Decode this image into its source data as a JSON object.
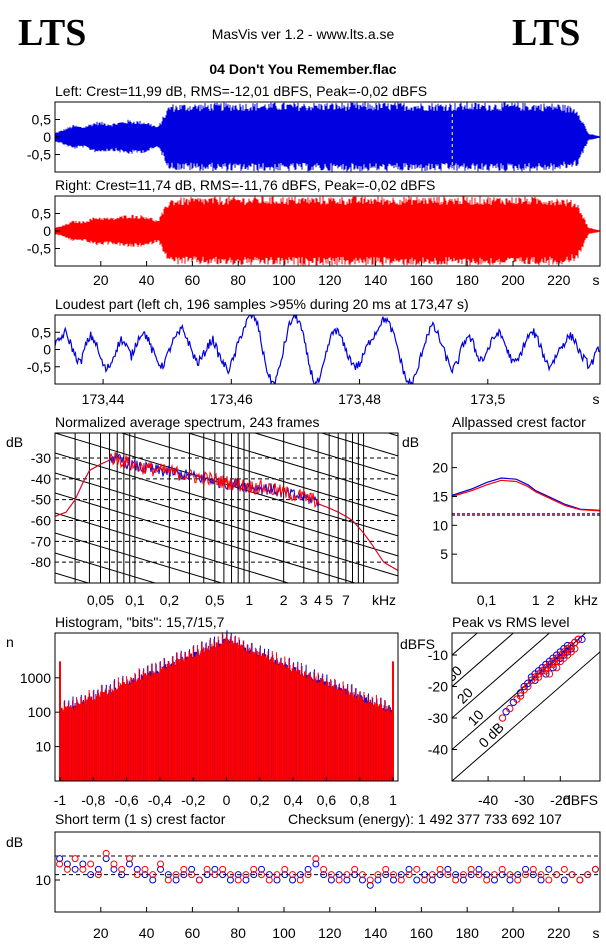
{
  "header": {
    "logo_left": "LTS",
    "logo_right": "LTS",
    "app_title": "MasVis ver 1.2 - www.lts.a.se",
    "file_title": "04 Don't You Remember.flac"
  },
  "colors": {
    "left": "#0000e0",
    "right": "#ff0000"
  },
  "chart_data": [
    {
      "id": "left-waveform",
      "type": "area",
      "title": "Left: Crest=11,99 dB, RMS=-12,01 dBFS, Peak=-0,02 dBFS",
      "yticks": [
        "0,5",
        "0",
        "-0,5"
      ],
      "ytick_values": [
        0.5,
        0,
        -0.5
      ],
      "ylim": [
        -1,
        1
      ],
      "xlim": [
        0,
        238
      ],
      "marker_x": 173.47,
      "envelope": [
        [
          0,
          0.12
        ],
        [
          3,
          0.2
        ],
        [
          8,
          0.35
        ],
        [
          12,
          0.3
        ],
        [
          18,
          0.45
        ],
        [
          25,
          0.4
        ],
        [
          32,
          0.5
        ],
        [
          40,
          0.45
        ],
        [
          45,
          0.3
        ],
        [
          50,
          0.95
        ],
        [
          60,
          0.97
        ],
        [
          80,
          0.99
        ],
        [
          120,
          0.99
        ],
        [
          160,
          0.99
        ],
        [
          200,
          0.99
        ],
        [
          220,
          0.97
        ],
        [
          228,
          0.85
        ],
        [
          231,
          0.4
        ],
        [
          233,
          0.1
        ],
        [
          238,
          0.02
        ]
      ]
    },
    {
      "id": "right-waveform",
      "type": "area",
      "title": "Right: Crest=11,74 dB, RMS=-11,76 dBFS, Peak=-0,02 dBFS",
      "yticks": [
        "0,5",
        "0",
        "-0,5"
      ],
      "ytick_values": [
        0.5,
        0,
        -0.5
      ],
      "ylim": [
        -1,
        1
      ],
      "xlim": [
        0,
        238
      ],
      "xticks": [
        20,
        40,
        60,
        80,
        100,
        120,
        140,
        160,
        180,
        200,
        220
      ],
      "xunit": "s",
      "envelope": [
        [
          0,
          0.1
        ],
        [
          3,
          0.15
        ],
        [
          8,
          0.3
        ],
        [
          12,
          0.28
        ],
        [
          18,
          0.42
        ],
        [
          25,
          0.38
        ],
        [
          32,
          0.48
        ],
        [
          40,
          0.45
        ],
        [
          45,
          0.3
        ],
        [
          50,
          0.95
        ],
        [
          60,
          0.97
        ],
        [
          80,
          0.99
        ],
        [
          120,
          0.99
        ],
        [
          160,
          0.99
        ],
        [
          200,
          0.99
        ],
        [
          220,
          0.97
        ],
        [
          228,
          0.85
        ],
        [
          231,
          0.4
        ],
        [
          233,
          0.1
        ],
        [
          238,
          0.02
        ]
      ]
    },
    {
      "id": "loudest-part",
      "type": "line",
      "title": "Loudest part (left  ch, 196 samples >95% during 20 ms at 173,47 s)",
      "yticks": [
        "0,5",
        "0",
        "-0,5"
      ],
      "ytick_values": [
        0.5,
        0,
        -0.5
      ],
      "ylim": [
        -1,
        1
      ],
      "xlim": [
        173.4325,
        173.5175
      ],
      "xticks": [
        173.44,
        173.46,
        173.48,
        173.5
      ],
      "xticklabels": [
        "173,44",
        "173,46",
        "173,48",
        "173,5"
      ],
      "xunit": "s",
      "values": [
        0.1,
        0.3,
        0.5,
        0.2,
        -0.2,
        -0.4,
        0.1,
        0.4,
        0.2,
        -0.3,
        -0.6,
        -0.4,
        0.0,
        0.3,
        0.1,
        -0.2,
        0.2,
        0.5,
        0.4,
        0.0,
        -0.3,
        -0.5,
        -0.2,
        0.2,
        0.4,
        0.6,
        0.3,
        -0.1,
        -0.4,
        -0.2,
        0.1,
        0.3,
        -0.1,
        -0.4,
        -0.6,
        -0.3,
        0.2,
        0.6,
        0.9,
        1.0,
        0.6,
        -0.2,
        -0.8,
        -1.0,
        -0.6,
        0.1,
        0.7,
        1.0,
        0.8,
        0.2,
        -0.5,
        -1.0,
        -0.9,
        -0.3,
        0.3,
        0.6,
        0.4,
        0.0,
        -0.3,
        -0.5,
        -0.4,
        0.0,
        0.3,
        0.5,
        0.8,
        0.9,
        0.6,
        0.2,
        -0.4,
        -0.9,
        -1.0,
        -0.7,
        -0.1,
        0.4,
        0.7,
        0.5,
        0.1,
        -0.3,
        -0.6,
        -0.4,
        0.1,
        0.4,
        0.2,
        -0.2,
        -0.3,
        0.0,
        0.3,
        0.5,
        0.3,
        -0.1,
        -0.4,
        -0.3,
        0.1,
        0.4,
        0.5,
        0.2,
        -0.2,
        -0.5,
        -0.3,
        0.0,
        0.2,
        0.4,
        0.3,
        -0.1,
        -0.3,
        -0.5,
        -0.2,
        0.1
      ]
    },
    {
      "id": "average-spectrum",
      "type": "line",
      "title": "Normalized average spectrum, 243 frames",
      "ylabel": "dB",
      "yticks": [
        -30,
        -40,
        -50,
        -60,
        -70,
        -80
      ],
      "ylim": [
        -90,
        -18
      ],
      "xlim": [
        0.02,
        20
      ],
      "xscale": "log",
      "xticks": [
        0.05,
        0.1,
        0.2,
        0.5,
        1,
        2,
        3,
        4,
        5,
        7
      ],
      "xticklabels": [
        "0,05",
        "0,1",
        "0,2",
        "0,5",
        "1",
        "2",
        "3",
        "4",
        "5",
        "7"
      ],
      "xunit": "kHz",
      "series": [
        {
          "x": [
            0.02,
            0.025,
            0.03,
            0.035,
            0.04,
            0.05,
            0.06,
            0.07,
            0.08,
            0.1,
            0.12,
            0.15,
            0.2,
            0.25,
            0.3,
            0.4,
            0.5,
            0.6,
            0.8,
            1,
            1.5,
            2,
            3,
            4,
            5,
            6,
            7,
            8,
            10,
            12,
            15,
            20
          ],
          "y": [
            -58,
            -56,
            -50,
            -42,
            -36,
            -33,
            -31,
            -32,
            -33,
            -35,
            -36,
            -37,
            -38,
            -39,
            -40,
            -41,
            -42,
            -43,
            -44,
            -45,
            -46,
            -48,
            -50,
            -52,
            -54,
            -56,
            -58,
            -60,
            -66,
            -72,
            -80,
            -84
          ]
        }
      ]
    },
    {
      "id": "allpassed-crest",
      "type": "line",
      "title": "Allpassed crest factor",
      "ylabel": "dB",
      "yticks": [
        20,
        15,
        10,
        5
      ],
      "ylim": [
        0,
        26
      ],
      "xlim": [
        0.02,
        20
      ],
      "xscale": "log",
      "xticks": [
        0.1,
        1,
        2
      ],
      "xticklabels": [
        "0,1",
        "1",
        "2"
      ],
      "xunit": "kHz",
      "series": [
        {
          "name": "left",
          "x": [
            0.02,
            0.05,
            0.1,
            0.2,
            0.4,
            0.7,
            1,
            2,
            4,
            8,
            20
          ],
          "y": [
            15.2,
            16.3,
            17.4,
            18.2,
            18.0,
            17.0,
            16.0,
            14.8,
            13.6,
            12.8,
            12.6
          ]
        },
        {
          "name": "right",
          "x": [
            0.02,
            0.05,
            0.1,
            0.2,
            0.4,
            0.7,
            1,
            2,
            4,
            8,
            20
          ],
          "y": [
            15.0,
            16.0,
            17.0,
            17.8,
            17.6,
            16.7,
            15.8,
            14.6,
            13.4,
            12.7,
            12.5
          ]
        }
      ],
      "reference_lines": [
        11.99,
        11.74
      ]
    },
    {
      "id": "histogram",
      "type": "bar",
      "title": "Histogram, \"bits\": 15,7/15,7",
      "ylabel": "n",
      "yticks": [
        1000,
        100,
        10
      ],
      "ytick_labels": [
        "1000",
        "100",
        "10"
      ],
      "yscale": "log",
      "ylim": [
        1,
        20000
      ],
      "xlim": [
        -1.03,
        1.03
      ],
      "xticks": [
        -1,
        -0.8,
        -0.6,
        -0.4,
        -0.2,
        0,
        0.2,
        0.4,
        0.6,
        0.8,
        1
      ],
      "xticklabels": [
        "-1",
        "-0,8",
        "-0,6",
        "-0,4",
        "-0,2",
        "0",
        "0,2",
        "0,4",
        "0,6",
        "0,8",
        "1"
      ],
      "center_peak": 15000,
      "edge_peak": 3000,
      "edge_count": 15
    },
    {
      "id": "peak-vs-rms",
      "type": "scatter",
      "title": "Peak vs RMS level",
      "ylabel": "dBFS",
      "xlabel": "dBFS",
      "yticks": [
        -10,
        -20,
        -30,
        -40
      ],
      "xticks": [
        -40,
        -30,
        -20
      ],
      "xlim": [
        -50,
        -9
      ],
      "ylim": [
        -50,
        -3
      ],
      "crest_lines": [
        0,
        10,
        20,
        30,
        40
      ],
      "crest_labels": [
        "0 dB",
        "10",
        "20",
        "30",
        "40"
      ],
      "series": [
        {
          "name": "left",
          "points": [
            [
              -35,
              -28
            ],
            [
              -33,
              -25
            ],
            [
              -31,
              -22
            ],
            [
              -30,
              -20
            ],
            [
              -29,
              -19
            ],
            [
              -28,
              -17
            ],
            [
              -27,
              -16
            ],
            [
              -26,
              -15
            ],
            [
              -25,
              -14
            ],
            [
              -24,
              -13
            ],
            [
              -23,
              -12
            ],
            [
              -22,
              -11
            ],
            [
              -21,
              -10
            ],
            [
              -20,
              -9
            ],
            [
              -19,
              -8
            ],
            [
              -18,
              -7
            ],
            [
              -17,
              -7
            ],
            [
              -16,
              -6
            ],
            [
              -15,
              -5
            ],
            [
              -14,
              -5
            ],
            [
              -27,
              -18
            ],
            [
              -25,
              -15
            ],
            [
              -23,
              -13
            ],
            [
              -21,
              -12
            ],
            [
              -19,
              -10
            ],
            [
              -17,
              -8
            ],
            [
              -24,
              -16
            ],
            [
              -22,
              -14
            ],
            [
              -20,
              -11
            ],
            [
              -18,
              -9
            ]
          ]
        },
        {
          "name": "right",
          "points": [
            [
              -36,
              -30
            ],
            [
              -34,
              -27
            ],
            [
              -32,
              -24
            ],
            [
              -31,
              -23
            ],
            [
              -30,
              -21
            ],
            [
              -29,
              -20
            ],
            [
              -28,
              -18
            ],
            [
              -27,
              -17
            ],
            [
              -26,
              -16
            ],
            [
              -25,
              -15
            ],
            [
              -24,
              -14
            ],
            [
              -23,
              -13
            ],
            [
              -22,
              -12
            ],
            [
              -21,
              -11
            ],
            [
              -20,
              -10
            ],
            [
              -19,
              -9
            ],
            [
              -18,
              -8
            ],
            [
              -17,
              -7
            ],
            [
              -16,
              -6
            ],
            [
              -15,
              -5
            ],
            [
              -26,
              -17
            ],
            [
              -24,
              -15
            ],
            [
              -22,
              -13
            ],
            [
              -20,
              -12
            ],
            [
              -18,
              -10
            ],
            [
              -16,
              -8
            ],
            [
              -23,
              -16
            ],
            [
              -21,
              -14
            ],
            [
              -19,
              -11
            ],
            [
              -17,
              -9
            ]
          ]
        }
      ]
    },
    {
      "id": "short-term-crest",
      "type": "scatter",
      "title": "Short term (1 s) crest factor",
      "annotation": "Checksum (energy):  1 492 377 733 692 107",
      "ylabel": "dB",
      "yticks": [
        10
      ],
      "ylim": [
        4,
        19
      ],
      "xlim": [
        0,
        238
      ],
      "xticks": [
        20,
        40,
        60,
        80,
        100,
        120,
        140,
        160,
        180,
        200,
        220
      ],
      "xunit": "s",
      "reference_lines": [
        14.5,
        11.0
      ],
      "left_values": [
        14,
        13,
        12,
        13,
        11,
        12,
        14,
        12,
        11,
        13,
        12,
        11,
        10,
        12,
        11,
        10,
        11,
        12,
        10,
        11,
        12,
        11,
        10,
        11,
        10,
        11,
        12,
        11,
        10,
        11,
        10,
        11,
        12,
        13,
        11,
        10,
        11,
        10,
        11,
        10,
        9,
        10,
        11,
        10,
        11,
        12,
        10,
        11,
        10,
        11,
        12,
        11,
        10,
        11,
        12,
        11,
        10,
        11,
        10,
        11,
        12,
        11,
        10,
        12,
        11,
        10,
        11,
        10,
        11,
        12
      ],
      "right_values": [
        13,
        12,
        14,
        12,
        13,
        11,
        15,
        13,
        12,
        14,
        11,
        12,
        11,
        13,
        10,
        11,
        12,
        11,
        10,
        12,
        11,
        12,
        11,
        10,
        11,
        12,
        11,
        10,
        11,
        12,
        11,
        10,
        11,
        14,
        12,
        11,
        10,
        11,
        12,
        11,
        10,
        11,
        12,
        11,
        10,
        11,
        12,
        10,
        11,
        12,
        11,
        10,
        11,
        12,
        11,
        10,
        11,
        12,
        11,
        10,
        11,
        12,
        11,
        10,
        11,
        12,
        11,
        10,
        11,
        12
      ]
    }
  ]
}
